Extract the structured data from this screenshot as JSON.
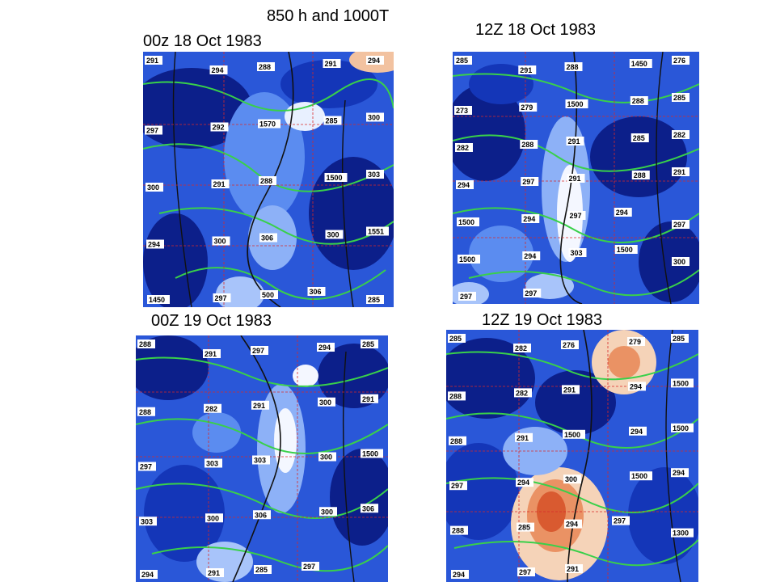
{
  "slide": {
    "title": "850 h and 1000T"
  },
  "panels": [
    {
      "time": "00z 18 Oct 1983",
      "labels": [
        "291",
        "294",
        "288",
        "291",
        "294",
        "297",
        "292",
        "1570",
        "285",
        "300",
        "300",
        "291",
        "288",
        "1500",
        "303",
        "294",
        "300",
        "306",
        "300",
        "1551",
        "1450",
        "297",
        "500",
        "306",
        "285"
      ]
    },
    {
      "time": "12Z 18 Oct 1983",
      "labels": [
        "285",
        "291",
        "288",
        "1450",
        "276",
        "273",
        "279",
        "1500",
        "288",
        "285",
        "282",
        "288",
        "291",
        "285",
        "282",
        "294",
        "297",
        "291",
        "288",
        "291",
        "1500",
        "294",
        "297",
        "294",
        "297",
        "1500",
        "294",
        "303",
        "1500",
        "300",
        "297",
        "297"
      ]
    },
    {
      "time": "00Z 19 Oct 1983",
      "labels": [
        "288",
        "291",
        "297",
        "294",
        "285",
        "288",
        "282",
        "291",
        "300",
        "291",
        "297",
        "303",
        "303",
        "300",
        "1500",
        "303",
        "300",
        "306",
        "300",
        "306",
        "294",
        "291",
        "285",
        "297"
      ]
    },
    {
      "time": "12Z 19 Oct 1983",
      "labels": [
        "285",
        "282",
        "276",
        "279",
        "285",
        "288",
        "282",
        "291",
        "294",
        "1500",
        "288",
        "291",
        "1500",
        "294",
        "1500",
        "297",
        "294",
        "300",
        "1500",
        "294",
        "288",
        "285",
        "294",
        "297",
        "1300",
        "294",
        "297",
        "291"
      ]
    }
  ]
}
